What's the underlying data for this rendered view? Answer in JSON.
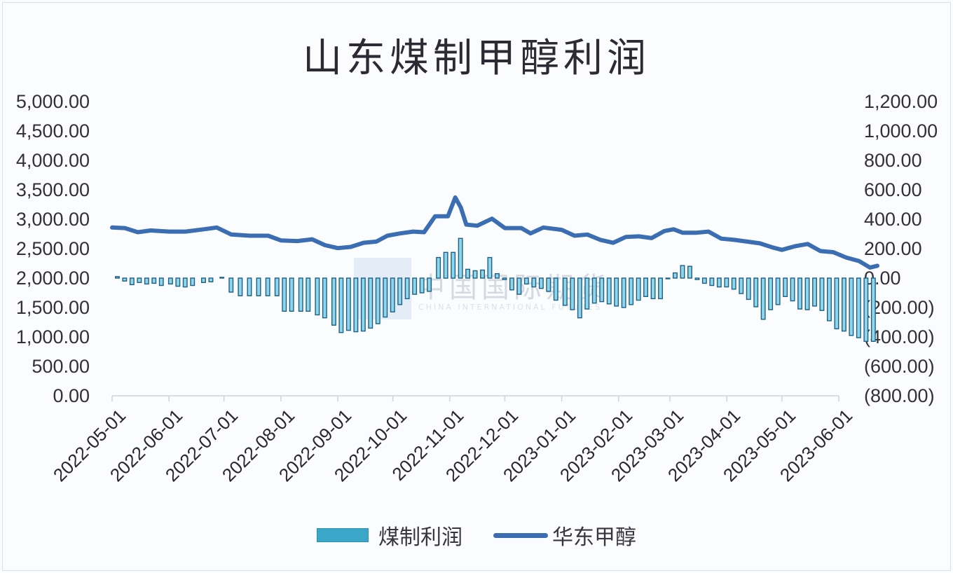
{
  "chart_data": {
    "type": "bar+line",
    "title": "山东煤制甲醇利润",
    "xlabel": "",
    "ylabel_left": "",
    "ylabel_right": "",
    "left_axis": {
      "range": [
        0,
        5000
      ],
      "ticks": [
        "5,000.00",
        "4,500.00",
        "4,000.00",
        "3,500.00",
        "3,000.00",
        "2,500.00",
        "2,000.00",
        "1,500.00",
        "1,000.00",
        "500.00",
        "0.00"
      ]
    },
    "right_axis": {
      "range": [
        -800,
        1200
      ],
      "ticks": [
        "1,200.00",
        "1,000.00",
        "800.00",
        "600.00",
        "400.00",
        "200.00",
        "0.00",
        "(200.00)",
        "(400.00)",
        "(600.00)",
        "(800.00)"
      ]
    },
    "x_ticks": [
      "2022-05-01",
      "2022-06-01",
      "2022-07-01",
      "2022-08-01",
      "2022-09-01",
      "2022-10-01",
      "2022-11-01",
      "2022-12-01",
      "2023-01-01",
      "2023-02-01",
      "2023-03-01",
      "2023-04-01",
      "2023-05-01",
      "2023-06-01"
    ],
    "legend": [
      "煤制利润",
      "华东甲醇"
    ],
    "legend_position": "bottom",
    "grid": false,
    "series": [
      {
        "name": "华东甲醇",
        "type": "line",
        "axis": "left",
        "color": "#3b6db3",
        "points": [
          [
            "2022-05-01",
            2860
          ],
          [
            "2022-05-08",
            2850
          ],
          [
            "2022-05-15",
            2780
          ],
          [
            "2022-05-22",
            2810
          ],
          [
            "2022-06-01",
            2790
          ],
          [
            "2022-06-10",
            2790
          ],
          [
            "2022-06-20",
            2830
          ],
          [
            "2022-06-27",
            2860
          ],
          [
            "2022-07-05",
            2740
          ],
          [
            "2022-07-15",
            2720
          ],
          [
            "2022-07-25",
            2720
          ],
          [
            "2022-08-01",
            2640
          ],
          [
            "2022-08-10",
            2630
          ],
          [
            "2022-08-18",
            2660
          ],
          [
            "2022-08-25",
            2560
          ],
          [
            "2022-09-01",
            2510
          ],
          [
            "2022-09-08",
            2530
          ],
          [
            "2022-09-15",
            2600
          ],
          [
            "2022-09-22",
            2620
          ],
          [
            "2022-09-28",
            2720
          ],
          [
            "2022-10-05",
            2760
          ],
          [
            "2022-10-12",
            2790
          ],
          [
            "2022-10-18",
            2780
          ],
          [
            "2022-10-24",
            3050
          ],
          [
            "2022-10-31",
            3050
          ],
          [
            "2022-11-04",
            3370
          ],
          [
            "2022-11-07",
            3200
          ],
          [
            "2022-11-10",
            2910
          ],
          [
            "2022-11-16",
            2890
          ],
          [
            "2022-11-24",
            3010
          ],
          [
            "2022-12-01",
            2850
          ],
          [
            "2022-12-10",
            2850
          ],
          [
            "2022-12-15",
            2760
          ],
          [
            "2022-12-22",
            2860
          ],
          [
            "2023-01-01",
            2820
          ],
          [
            "2023-01-08",
            2720
          ],
          [
            "2023-01-15",
            2740
          ],
          [
            "2023-01-22",
            2650
          ],
          [
            "2023-01-29",
            2600
          ],
          [
            "2023-02-05",
            2700
          ],
          [
            "2023-02-12",
            2710
          ],
          [
            "2023-02-19",
            2680
          ],
          [
            "2023-02-26",
            2800
          ],
          [
            "2023-03-03",
            2830
          ],
          [
            "2023-03-08",
            2770
          ],
          [
            "2023-03-15",
            2770
          ],
          [
            "2023-03-22",
            2790
          ],
          [
            "2023-03-29",
            2670
          ],
          [
            "2023-04-05",
            2650
          ],
          [
            "2023-04-12",
            2620
          ],
          [
            "2023-04-19",
            2590
          ],
          [
            "2023-04-26",
            2520
          ],
          [
            "2023-05-01",
            2480
          ],
          [
            "2023-05-08",
            2540
          ],
          [
            "2023-05-15",
            2580
          ],
          [
            "2023-05-22",
            2460
          ],
          [
            "2023-05-29",
            2440
          ],
          [
            "2023-06-05",
            2350
          ],
          [
            "2023-06-12",
            2290
          ],
          [
            "2023-06-18",
            2180
          ],
          [
            "2023-06-22",
            2210
          ]
        ]
      },
      {
        "name": "煤制利润",
        "type": "bar",
        "axis": "right",
        "color": "#3aa6c8",
        "edge_color": "#1d5f86",
        "points": [
          [
            "2022-05-04",
            10
          ],
          [
            "2022-05-08",
            -20
          ],
          [
            "2022-05-12",
            -45
          ],
          [
            "2022-05-16",
            -30
          ],
          [
            "2022-05-20",
            -40
          ],
          [
            "2022-05-24",
            -35
          ],
          [
            "2022-05-28",
            -50
          ],
          [
            "2022-06-02",
            -40
          ],
          [
            "2022-06-06",
            -55
          ],
          [
            "2022-06-10",
            -60
          ],
          [
            "2022-06-14",
            -50
          ],
          [
            "2022-06-20",
            -30
          ],
          [
            "2022-06-24",
            -25
          ],
          [
            "2022-06-30",
            5
          ],
          [
            "2022-07-05",
            -95
          ],
          [
            "2022-07-10",
            -120
          ],
          [
            "2022-07-15",
            -120
          ],
          [
            "2022-07-20",
            -120
          ],
          [
            "2022-07-25",
            -120
          ],
          [
            "2022-07-30",
            -120
          ],
          [
            "2022-08-03",
            -225
          ],
          [
            "2022-08-07",
            -225
          ],
          [
            "2022-08-12",
            -225
          ],
          [
            "2022-08-16",
            -225
          ],
          [
            "2022-08-21",
            -250
          ],
          [
            "2022-08-25",
            -270
          ],
          [
            "2022-08-30",
            -320
          ],
          [
            "2022-09-03",
            -370
          ],
          [
            "2022-09-07",
            -355
          ],
          [
            "2022-09-11",
            -365
          ],
          [
            "2022-09-15",
            -360
          ],
          [
            "2022-09-19",
            -340
          ],
          [
            "2022-09-23",
            -310
          ],
          [
            "2022-09-27",
            -265
          ],
          [
            "2022-10-01",
            -230
          ],
          [
            "2022-10-05",
            -180
          ],
          [
            "2022-10-09",
            -140
          ],
          [
            "2022-10-13",
            -110
          ],
          [
            "2022-10-17",
            -100
          ],
          [
            "2022-10-21",
            -90
          ],
          [
            "2022-10-26",
            140
          ],
          [
            "2022-10-30",
            175
          ],
          [
            "2022-11-03",
            175
          ],
          [
            "2022-11-07",
            270
          ],
          [
            "2022-11-11",
            60
          ],
          [
            "2022-11-15",
            50
          ],
          [
            "2022-11-19",
            55
          ],
          [
            "2022-11-23",
            140
          ],
          [
            "2022-11-27",
            30
          ],
          [
            "2022-12-01",
            -10
          ],
          [
            "2022-12-05",
            -80
          ],
          [
            "2022-12-09",
            -110
          ],
          [
            "2022-12-13",
            -40
          ],
          [
            "2022-12-17",
            -60
          ],
          [
            "2022-12-21",
            -70
          ],
          [
            "2022-12-25",
            -90
          ],
          [
            "2022-12-29",
            -150
          ],
          [
            "2023-01-03",
            -185
          ],
          [
            "2023-01-07",
            -215
          ],
          [
            "2023-01-11",
            -270
          ],
          [
            "2023-01-15",
            -210
          ],
          [
            "2023-01-19",
            -170
          ],
          [
            "2023-01-23",
            -160
          ],
          [
            "2023-01-27",
            -175
          ],
          [
            "2023-01-31",
            -190
          ],
          [
            "2023-02-04",
            -200
          ],
          [
            "2023-02-08",
            -180
          ],
          [
            "2023-02-12",
            -150
          ],
          [
            "2023-02-16",
            -125
          ],
          [
            "2023-02-20",
            -140
          ],
          [
            "2023-02-24",
            -140
          ],
          [
            "2023-02-28",
            0
          ],
          [
            "2023-03-04",
            35
          ],
          [
            "2023-03-08",
            85
          ],
          [
            "2023-03-12",
            80
          ],
          [
            "2023-03-16",
            -10
          ],
          [
            "2023-03-20",
            -35
          ],
          [
            "2023-03-24",
            -50
          ],
          [
            "2023-03-28",
            -60
          ],
          [
            "2023-04-01",
            -60
          ],
          [
            "2023-04-05",
            -75
          ],
          [
            "2023-04-09",
            -105
          ],
          [
            "2023-04-13",
            -145
          ],
          [
            "2023-04-17",
            -195
          ],
          [
            "2023-04-21",
            -280
          ],
          [
            "2023-04-25",
            -215
          ],
          [
            "2023-04-29",
            -180
          ],
          [
            "2023-05-03",
            -125
          ],
          [
            "2023-05-07",
            -155
          ],
          [
            "2023-05-11",
            -210
          ],
          [
            "2023-05-15",
            -215
          ],
          [
            "2023-05-19",
            -190
          ],
          [
            "2023-05-23",
            -220
          ],
          [
            "2023-05-27",
            -290
          ],
          [
            "2023-05-31",
            -345
          ],
          [
            "2023-06-04",
            -360
          ],
          [
            "2023-06-08",
            -390
          ],
          [
            "2023-06-12",
            -405
          ],
          [
            "2023-06-16",
            -430
          ],
          [
            "2023-06-20",
            -430
          ]
        ]
      }
    ]
  },
  "watermark": {
    "text": "中国国际期货",
    "sub": "CHINA INTERNATIONAL FUTURES"
  }
}
